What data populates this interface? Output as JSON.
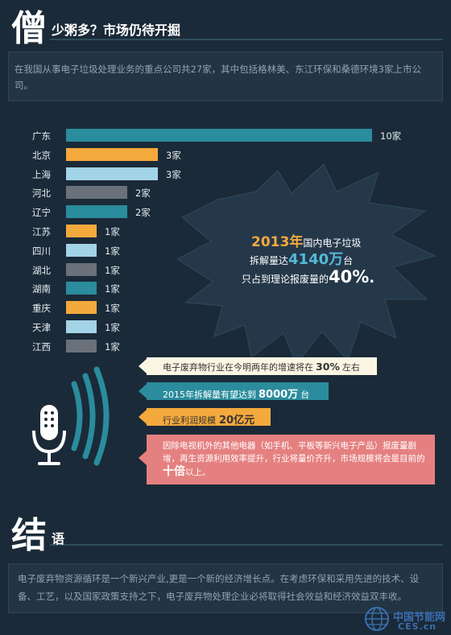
{
  "header": {
    "icon_char": "僧",
    "title": "少粥多？市场仍待开掘"
  },
  "intro": "在我国从事电子垃圾处理业务的重点公司共27家，其中包括格林美、东江环保和桑德环境3家上市公司。",
  "chart_data": {
    "type": "bar",
    "orientation": "horizontal",
    "categories": [
      "广东",
      "北京",
      "上海",
      "河北",
      "辽宁",
      "江苏",
      "四川",
      "湖北",
      "湖南",
      "重庆",
      "天津",
      "江西"
    ],
    "values": [
      10,
      3,
      3,
      2,
      2,
      1,
      1,
      1,
      1,
      1,
      1,
      1
    ],
    "value_labels": [
      "10家",
      "3家",
      "3家",
      "2家",
      "2家",
      "1家",
      "1家",
      "1家",
      "1家",
      "1家",
      "1家",
      "1家"
    ],
    "bar_colors": [
      "#2a8c9c",
      "#f4a93c",
      "#a3d3e6",
      "#6a717b",
      "#2a8c9c",
      "#f4a93c",
      "#a3d3e6",
      "#6a717b",
      "#2a8c9c",
      "#f4a93c",
      "#a3d3e6",
      "#6a717b"
    ],
    "xlim": [
      0,
      10
    ]
  },
  "burst": {
    "line1_year": "2013年",
    "line1_text": "国内电子垃圾",
    "line2_prefix": "拆解量达",
    "line2_value": "4140万",
    "line2_suffix": "台",
    "line3_prefix": "只占到理论报废量的",
    "line3_value": "40%",
    "line3_suffix": "."
  },
  "info_boxes": {
    "box1_prefix": "电子废弃物行业在今明两年的增速将在",
    "box1_value": "30%",
    "box1_suffix": "左右",
    "box2_prefix": "2015年拆解量有望达到",
    "box2_value": "8000万",
    "box2_suffix": "台",
    "box3_prefix": "行业利润规模",
    "box3_value": "20亿元",
    "box4_text": "因除电视机外的其他电器（如手机、平板等新兴电子产品）报废量剧增，再生资源利用效率提升，行业将量价齐升，市场规模将会是目前的",
    "box4_value": "十倍",
    "box4_suffix": "以上。"
  },
  "conclusion": {
    "char": "结",
    "title": "语",
    "text": "电子废弃物资源循环是一个新兴产业,更是一个新的经济增长点。在考虑环保和采用先进的技术、设备、工艺，以及国家政策支持之下，电子废弃物处理企业必将取得社会效益和经济效益双丰收。"
  },
  "watermark": {
    "name": "中国节能网",
    "url": "CES.cn"
  },
  "colors": {
    "background": "#1b2a38",
    "teal": "#2a8c9c",
    "orange": "#f4a93c",
    "light_blue": "#a3d3e6",
    "gray": "#6a717b",
    "cream": "#fbf6e4",
    "pink": "#e58080"
  }
}
